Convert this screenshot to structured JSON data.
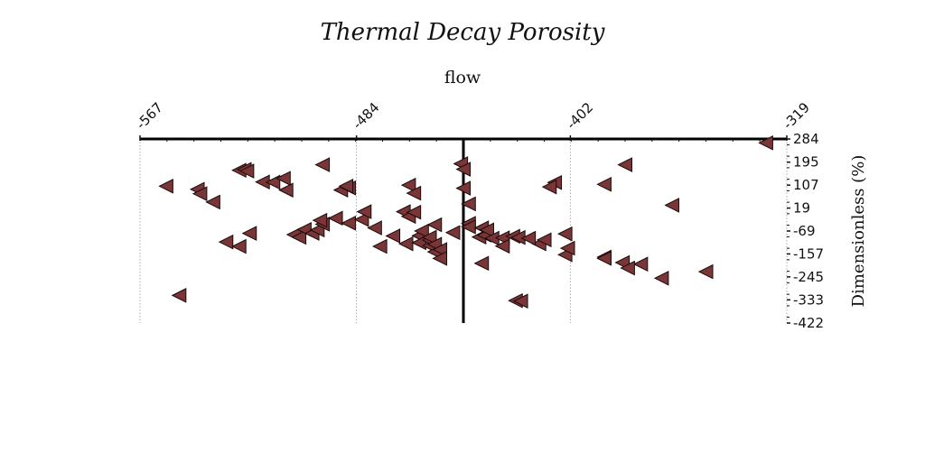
{
  "chart_data": {
    "type": "scatter",
    "title": "Thermal Decay Porosity",
    "xlabel": "flow",
    "ylabel": "Dimensionless (%)",
    "xlim": [
      -567,
      -319
    ],
    "ylim": [
      -422,
      284
    ],
    "x_ticks": [
      "-567",
      "-484",
      "-402",
      "-319"
    ],
    "y_ticks": [
      "284",
      "195",
      "107",
      "19",
      "-69",
      "-157",
      "-245",
      "-333",
      "-422"
    ],
    "x_axis_position": "top",
    "y_axis_position": "right",
    "zero_line_x": -443,
    "grid": "vertical dotted lines at labeled x ticks",
    "marker": "left-pointing triangle",
    "marker_color": "#7a3636",
    "marker_edge": "#1a0a0a",
    "points": [
      [
        -557,
        103
      ],
      [
        -545,
        91
      ],
      [
        -544,
        74
      ],
      [
        -539,
        42
      ],
      [
        -534,
        -111
      ],
      [
        -529,
        -128
      ],
      [
        -525,
        -78
      ],
      [
        -552,
        -316
      ],
      [
        -529,
        164
      ],
      [
        -527,
        167
      ],
      [
        -526,
        161
      ],
      [
        -520,
        119
      ],
      [
        -516,
        118
      ],
      [
        -511,
        88
      ],
      [
        -512,
        133
      ],
      [
        -497,
        185
      ],
      [
        -508,
        -83
      ],
      [
        -506,
        -93
      ],
      [
        -504,
        -63
      ],
      [
        -501,
        -78
      ],
      [
        -499,
        -65
      ],
      [
        -497,
        -43
      ],
      [
        -498,
        -28
      ],
      [
        -492,
        -20
      ],
      [
        -487,
        -39
      ],
      [
        -490,
        88
      ],
      [
        -487,
        96
      ],
      [
        -488,
        103
      ],
      [
        -482,
        -25
      ],
      [
        -481,
        5
      ],
      [
        -477,
        -57
      ],
      [
        -475,
        -128
      ],
      [
        -470,
        -88
      ],
      [
        -466,
        5
      ],
      [
        -464,
        -13
      ],
      [
        -464,
        107
      ],
      [
        -465,
        -118
      ],
      [
        -462,
        3
      ],
      [
        -462,
        76
      ],
      [
        -460,
        -87
      ],
      [
        -459,
        -69
      ],
      [
        -460,
        -114
      ],
      [
        -456,
        -125
      ],
      [
        -456,
        -104
      ],
      [
        -454,
        -149
      ],
      [
        -456,
        -93
      ],
      [
        -454,
        -45
      ],
      [
        -454,
        -120
      ],
      [
        -452,
        -140
      ],
      [
        -452,
        -174
      ],
      [
        -447,
        -75
      ],
      [
        -444,
        189
      ],
      [
        -443,
        168
      ],
      [
        -443,
        95
      ],
      [
        -441,
        -40
      ],
      [
        -441,
        35
      ],
      [
        -441,
        -53
      ],
      [
        -436,
        -193
      ],
      [
        -437,
        -92
      ],
      [
        -436,
        -57
      ],
      [
        -435,
        -85
      ],
      [
        -434,
        -65
      ],
      [
        -432,
        -97
      ],
      [
        -428,
        -95
      ],
      [
        -428,
        -127
      ],
      [
        -424,
        -89
      ],
      [
        -422,
        -94
      ],
      [
        -423,
        -336
      ],
      [
        -421,
        -338
      ],
      [
        -414,
        -118
      ],
      [
        -412,
        -103
      ],
      [
        -404,
        -160
      ],
      [
        -403,
        -135
      ],
      [
        -389,
        110
      ],
      [
        -389,
        -169
      ],
      [
        -389,
        -174
      ],
      [
        -382,
        -190
      ],
      [
        -375,
        -196
      ],
      [
        -380,
        -211
      ],
      [
        -404,
        -80
      ],
      [
        -408,
        117
      ],
      [
        -410,
        100
      ],
      [
        -418,
        -97
      ],
      [
        -367,
        -250
      ],
      [
        -350,
        -225
      ],
      [
        -363,
        30
      ],
      [
        -327,
        269
      ],
      [
        -381,
        185
      ]
    ]
  }
}
